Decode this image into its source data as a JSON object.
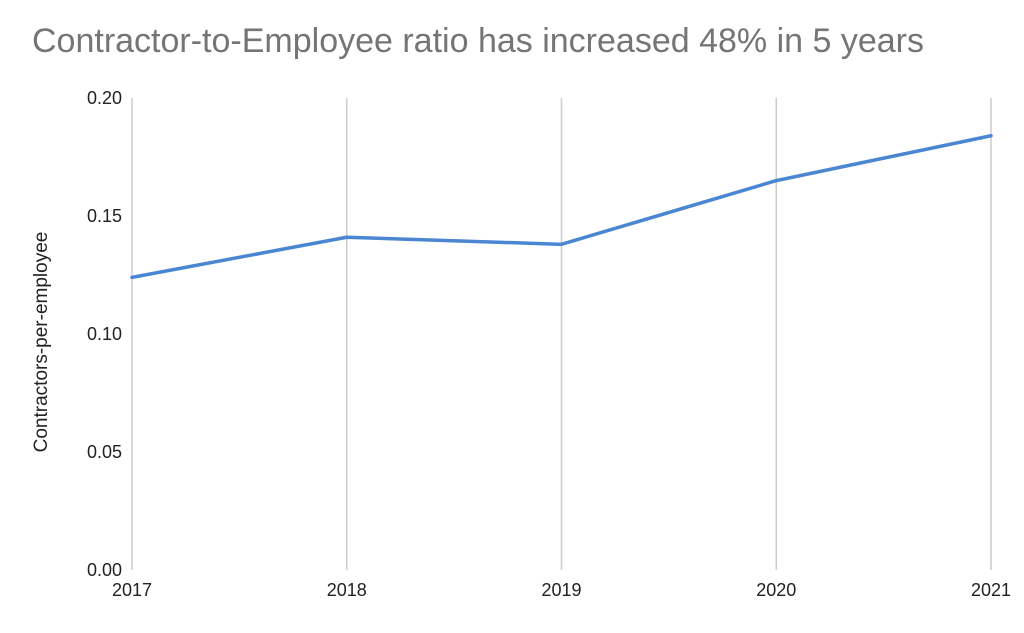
{
  "chart_data": {
    "type": "line",
    "title": "Contractor-to-Employee ratio has increased 48% in 5 years",
    "xlabel": "",
    "ylabel": "Contractors-per-employee",
    "categories": [
      "2017",
      "2018",
      "2019",
      "2020",
      "2021"
    ],
    "series": [
      {
        "values": [
          0.124,
          0.141,
          0.138,
          0.165,
          0.184
        ]
      }
    ],
    "ylim": [
      0,
      0.2
    ],
    "yticks": [
      "0.00",
      "0.05",
      "0.10",
      "0.15",
      "0.20"
    ],
    "grid": "vertical",
    "legend": "none",
    "colors": {
      "line": "#4a86d1",
      "grid": "#cccccc",
      "title": "#757575"
    }
  }
}
